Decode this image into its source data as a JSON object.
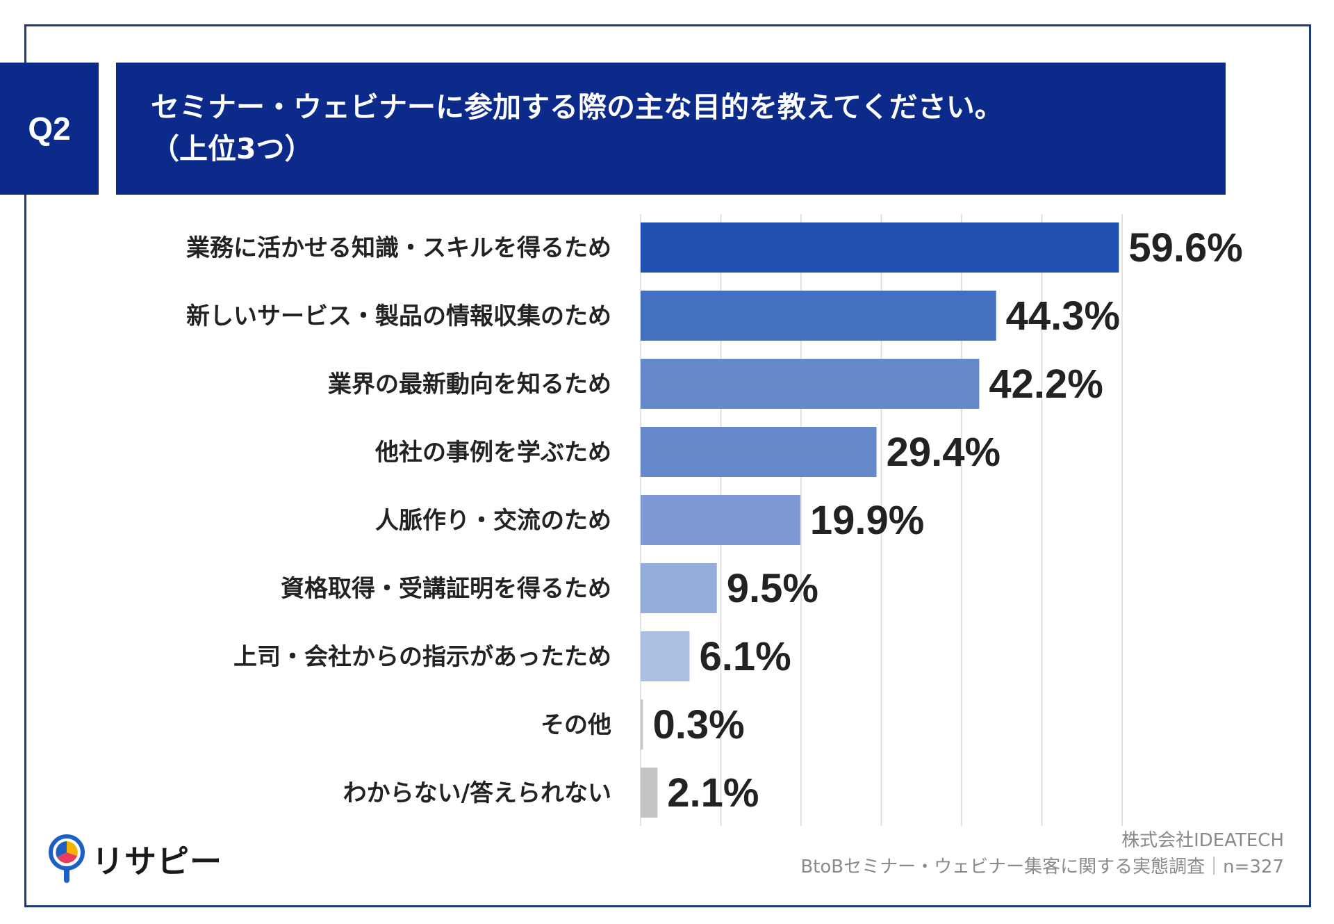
{
  "header": {
    "badge": "Q2",
    "title_line1": "セミナー・ウェビナーに参加する際の主な目的を教えてください。",
    "title_line2": "（上位3つ）"
  },
  "chart_data": {
    "type": "bar",
    "orientation": "horizontal",
    "categories": [
      "業務に活かせる知識・スキルを得るため",
      "新しいサービス・製品の情報収集のため",
      "業界の最新動向を知るため",
      "他社の事例を学ぶため",
      "人脈作り・交流のため",
      "資格取得・受講証明を得るため",
      "上司・会社からの指示があったため",
      "その他",
      "わからない/答えられない"
    ],
    "values": [
      59.6,
      44.3,
      42.2,
      29.4,
      19.9,
      9.5,
      6.1,
      0.3,
      2.1
    ],
    "value_labels": [
      "59.6%",
      "44.3%",
      "42.2%",
      "29.4%",
      "19.9%",
      "9.5%",
      "6.1%",
      "0.3%",
      "2.1%"
    ],
    "bar_colors": [
      "#2150b3",
      "#4470c2",
      "#6689cc",
      "#6689cc",
      "#7d9ad4",
      "#94add9",
      "#aabfe2",
      "#c9c9c9",
      "#c4c4c4"
    ],
    "xlim": [
      0,
      60
    ],
    "grid": true
  },
  "footer": {
    "company": "株式会社IDEATECH",
    "survey": "BtoBセミナー・ウェビナー集客に関する実態調査｜n=327",
    "logo_text": "リサピー"
  }
}
